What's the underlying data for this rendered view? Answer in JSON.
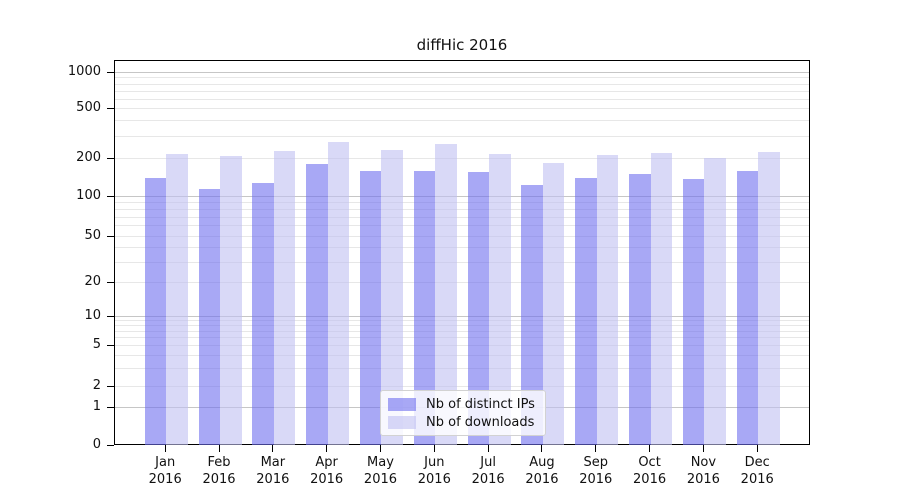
{
  "figure": {
    "title": "diffHic 2016"
  },
  "chart_data": {
    "type": "bar",
    "title": "diffHic 2016",
    "categories": [
      "Jan 2016",
      "Feb 2016",
      "Mar 2016",
      "Apr 2016",
      "May 2016",
      "Jun 2016",
      "Jul 2016",
      "Aug 2016",
      "Sep 2016",
      "Oct 2016",
      "Nov 2016",
      "Dec 2016"
    ],
    "series": [
      {
        "name": "Nb of distinct IPs",
        "color": "rgba(110,110,238,0.6)",
        "values": [
          142,
          115,
          129,
          182,
          160,
          162,
          159,
          125,
          142,
          151,
          140,
          161
        ]
      },
      {
        "name": "Nb of downloads",
        "color": "rgba(192,192,242,0.6)",
        "values": [
          218,
          210,
          231,
          274,
          235,
          264,
          220,
          186,
          215,
          223,
          205,
          227
        ]
      }
    ],
    "yticks": [
      0,
      1,
      2,
      5,
      10,
      20,
      50,
      100,
      200,
      500,
      1000
    ],
    "ylim": [
      0,
      1000
    ],
    "yscale": "symlog",
    "grid": true,
    "legend_position": "lower center",
    "xlabel": "",
    "ylabel": ""
  }
}
